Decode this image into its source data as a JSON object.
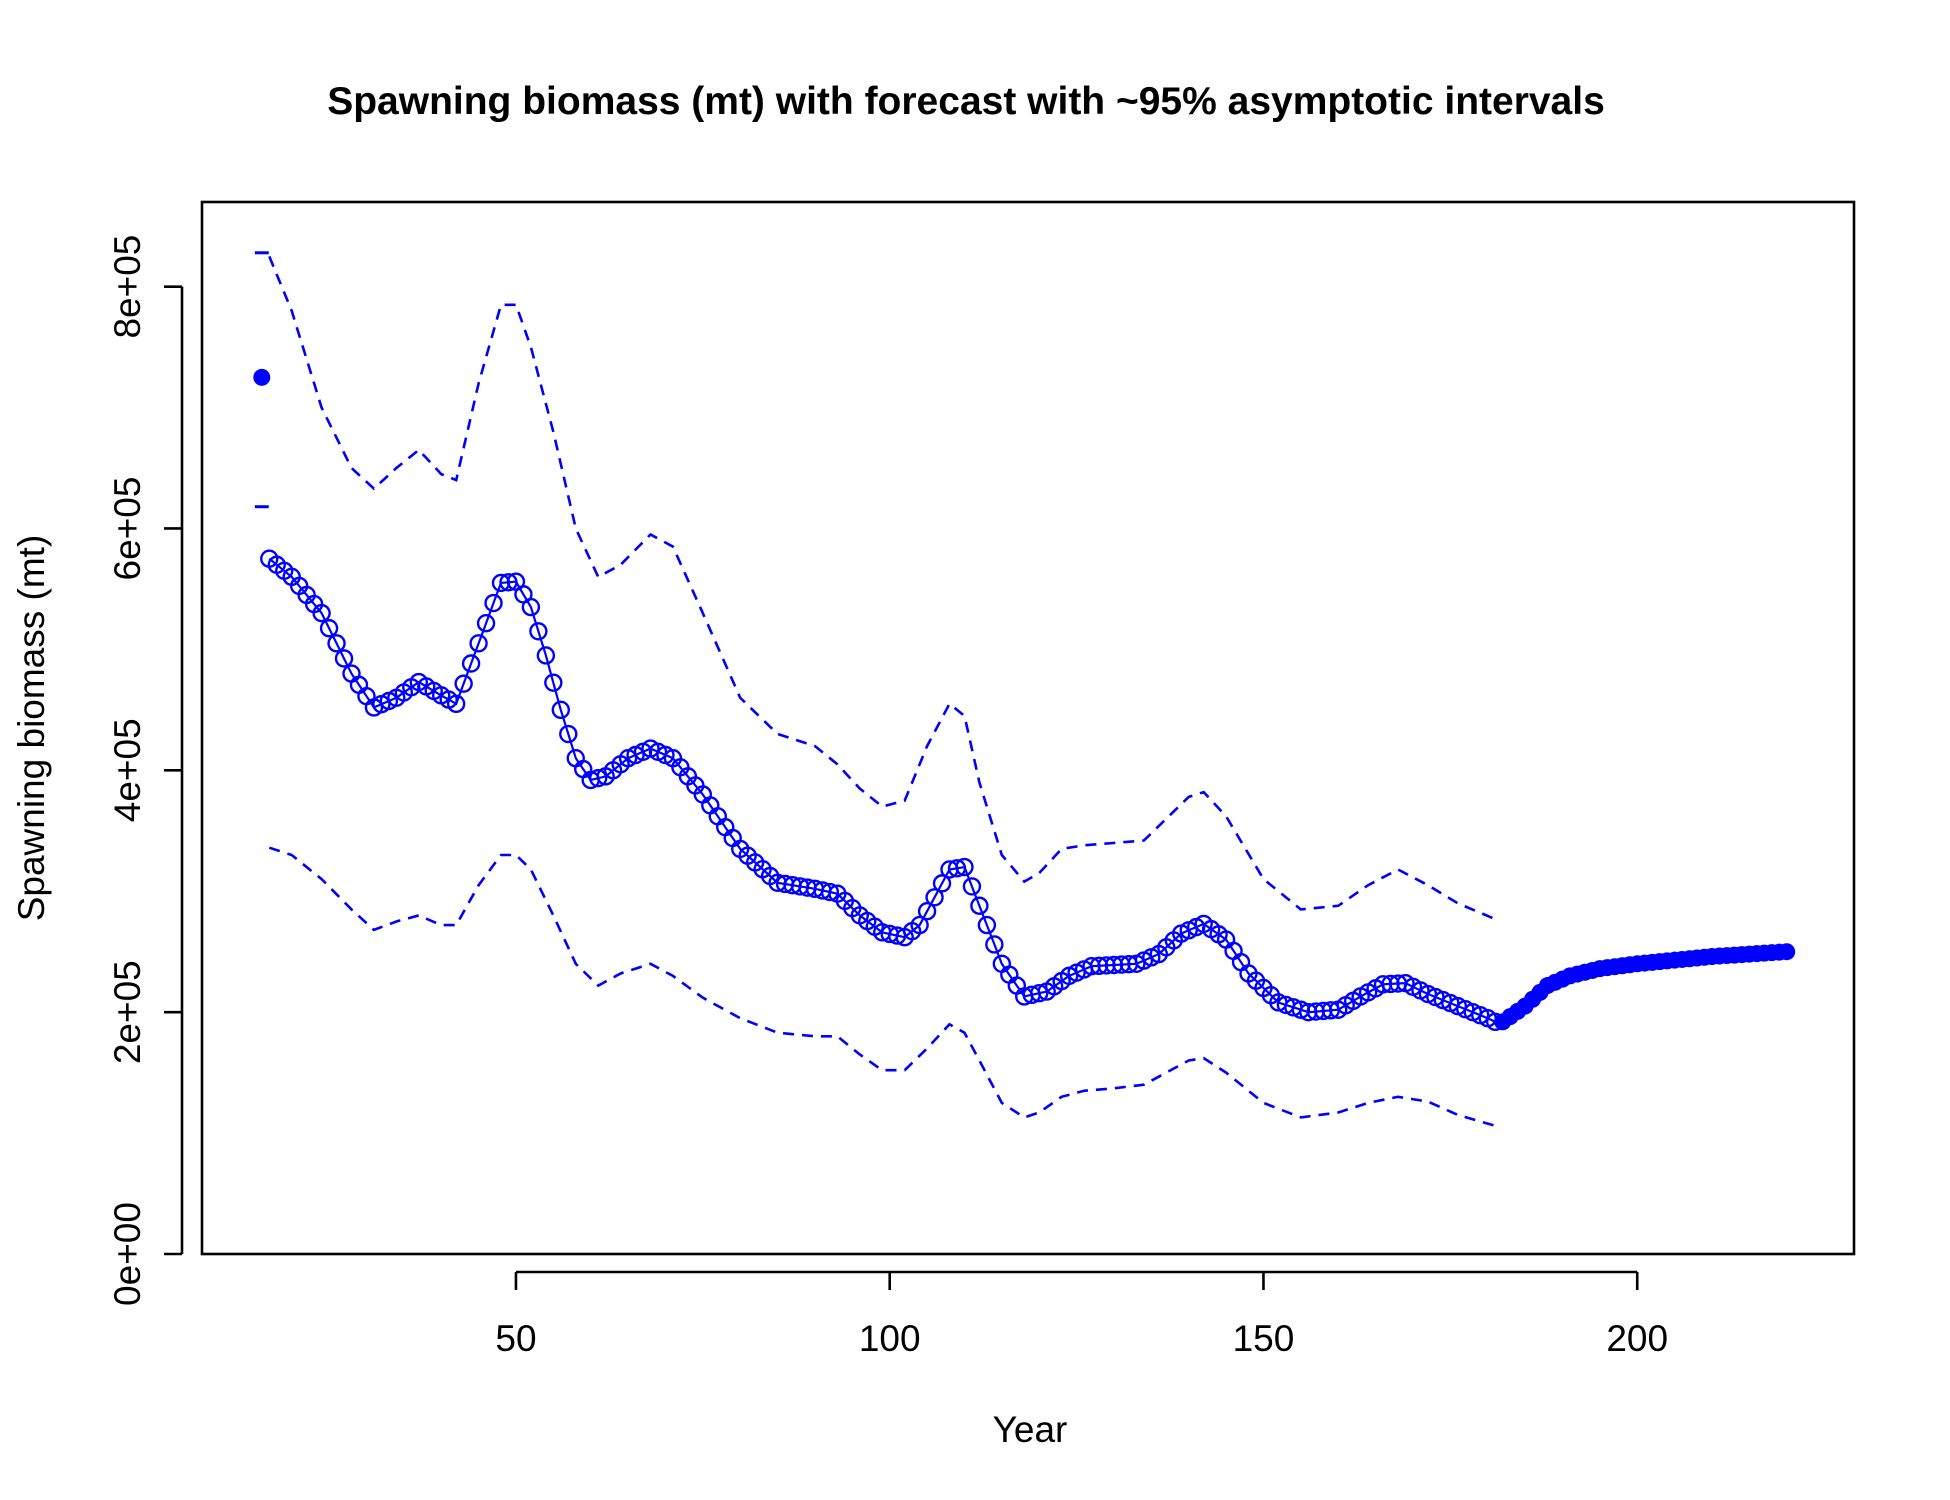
{
  "chart_data": {
    "type": "line",
    "title": "Spawning biomass (mt) with forecast with ~95% asymptotic intervals",
    "xlabel": "Year",
    "ylabel": "Spawning biomass (mt)",
    "xlim": [
      8,
      229
    ],
    "ylim": [
      0,
      870000
    ],
    "x_ticks": [
      50,
      100,
      150,
      200
    ],
    "x_tick_labels": [
      "50",
      "100",
      "150",
      "200"
    ],
    "y_ticks": [
      0,
      200000,
      400000,
      600000,
      800000
    ],
    "y_tick_labels": [
      "0e+00",
      "2e+05",
      "4e+05",
      "6e+05",
      "8e+05"
    ],
    "grid": false,
    "legend": "none",
    "color": "#0000ff",
    "virgin": {
      "x": 16,
      "value": 725000,
      "lower": 618000,
      "upper": 828000
    },
    "estimate_keypoints": {
      "x": [
        17,
        20,
        24,
        28,
        31,
        34,
        37,
        40,
        42,
        45,
        48,
        50,
        52,
        54,
        56,
        58,
        60,
        62,
        65,
        68,
        71,
        75,
        80,
        85,
        90,
        93,
        96,
        99,
        102,
        104,
        106,
        108,
        110,
        112,
        115,
        118,
        121,
        124,
        127,
        130,
        133,
        136,
        139,
        142,
        145,
        148,
        152,
        156,
        160,
        163,
        166,
        169,
        172,
        176,
        180,
        181
      ],
      "y": [
        575000,
        560000,
        530000,
        480000,
        452000,
        460000,
        473000,
        462000,
        455000,
        505000,
        555000,
        556000,
        535000,
        495000,
        450000,
        410000,
        392000,
        395000,
        410000,
        418000,
        410000,
        380000,
        335000,
        307000,
        302000,
        298000,
        280000,
        266000,
        262000,
        272000,
        295000,
        318000,
        320000,
        288000,
        240000,
        213000,
        217000,
        230000,
        238000,
        239000,
        240000,
        248000,
        265000,
        273000,
        260000,
        232000,
        208000,
        200000,
        202000,
        213000,
        223000,
        224000,
        215000,
        205000,
        195000,
        192000
      ]
    },
    "forecast_keypoints": {
      "x": [
        182,
        185,
        188,
        191,
        195,
        200,
        205,
        210,
        215,
        220
      ],
      "y": [
        192000,
        205000,
        222000,
        230000,
        236000,
        240000,
        243000,
        246000,
        248000,
        250000
      ]
    },
    "upper_ci": {
      "x": [
        17,
        20,
        24,
        28,
        31,
        34,
        37,
        40,
        42,
        45,
        48,
        50,
        52,
        55,
        58,
        61,
        64,
        68,
        71,
        75,
        80,
        85,
        90,
        93,
        96,
        99,
        102,
        105,
        108,
        110,
        112,
        115,
        118,
        120,
        123,
        126,
        130,
        134,
        137,
        140,
        142,
        145,
        150,
        155,
        160,
        164,
        168,
        172,
        176,
        181
      ],
      "y": [
        825000,
        780000,
        700000,
        650000,
        633000,
        650000,
        665000,
        645000,
        640000,
        720000,
        785000,
        785000,
        750000,
        680000,
        600000,
        560000,
        570000,
        595000,
        585000,
        530000,
        460000,
        430000,
        420000,
        405000,
        385000,
        370000,
        375000,
        420000,
        455000,
        445000,
        390000,
        330000,
        308000,
        315000,
        335000,
        338000,
        340000,
        342000,
        360000,
        378000,
        382000,
        362000,
        310000,
        285000,
        288000,
        305000,
        318000,
        305000,
        290000,
        277000
      ]
    },
    "lower_ci": {
      "x": [
        17,
        20,
        24,
        28,
        31,
        34,
        37,
        40,
        42,
        45,
        48,
        50,
        52,
        55,
        58,
        61,
        64,
        68,
        71,
        75,
        80,
        85,
        90,
        93,
        96,
        99,
        102,
        105,
        108,
        110,
        112,
        115,
        118,
        120,
        123,
        126,
        130,
        134,
        137,
        140,
        142,
        145,
        150,
        155,
        160,
        164,
        168,
        172,
        176,
        181
      ],
      "y": [
        336000,
        330000,
        310000,
        285000,
        268000,
        275000,
        280000,
        272000,
        272000,
        305000,
        330000,
        330000,
        318000,
        280000,
        240000,
        222000,
        232000,
        240000,
        230000,
        212000,
        195000,
        183000,
        180000,
        180000,
        165000,
        152000,
        152000,
        170000,
        190000,
        183000,
        160000,
        125000,
        113000,
        117000,
        130000,
        135000,
        137000,
        140000,
        150000,
        160000,
        162000,
        150000,
        125000,
        113000,
        117000,
        125000,
        130000,
        126000,
        115000,
        106000
      ]
    }
  }
}
